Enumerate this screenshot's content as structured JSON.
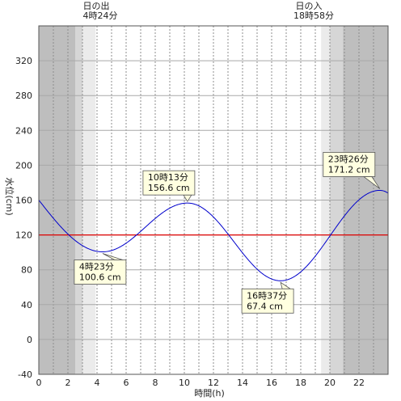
{
  "chart_data": {
    "type": "line",
    "xlabel": "時間(h)",
    "ylabel": "水位(cm)",
    "xlim": [
      0,
      24
    ],
    "ylim": [
      -40,
      360
    ],
    "x_ticks": [
      0,
      2,
      4,
      6,
      8,
      10,
      12,
      14,
      16,
      18,
      20,
      22
    ],
    "y_ticks": [
      -40,
      0,
      40,
      80,
      120,
      160,
      200,
      240,
      280,
      320
    ],
    "grid": true,
    "reference_line": {
      "value": 120,
      "color": "#dd0000"
    },
    "sunrise": {
      "label": "日の出",
      "time_label": "4時24分",
      "hour": 4.4
    },
    "sunset": {
      "label": "日の入",
      "time_label": "18時58分",
      "hour": 18.967
    },
    "twilight_shading": [
      {
        "from": 0,
        "to": 2.5,
        "level": "night"
      },
      {
        "from": 2.5,
        "to": 3.0,
        "level": "dusk"
      },
      {
        "from": 3.0,
        "to": 3.9,
        "level": "light"
      },
      {
        "from": 19.4,
        "to": 20.0,
        "level": "light"
      },
      {
        "from": 20.0,
        "to": 20.9,
        "level": "dusk"
      },
      {
        "from": 20.9,
        "to": 24,
        "level": "night"
      }
    ],
    "series": [
      {
        "color": "#0000cc",
        "extrema": [
          {
            "x": 4.383,
            "y": 100.6,
            "label": [
              "4時23分",
              "100.6 cm"
            ]
          },
          {
            "x": 10.217,
            "y": 156.6,
            "label": [
              "10時13分",
              "156.6 cm"
            ]
          },
          {
            "x": 16.617,
            "y": 67.4,
            "label": [
              "16時37分",
              "67.4 cm"
            ]
          },
          {
            "x": 23.433,
            "y": 171.2,
            "label": [
              "23時26分",
              "171.2 cm"
            ]
          }
        ],
        "start": {
          "x": 0,
          "y": 160
        },
        "end": {
          "x": 24,
          "y": 168
        }
      }
    ],
    "colors": {
      "night": "#bebebe",
      "dusk": "#d6d6d6",
      "light": "#ebebeb",
      "day": "#ffffff",
      "label_box": "#ffffe0"
    }
  }
}
